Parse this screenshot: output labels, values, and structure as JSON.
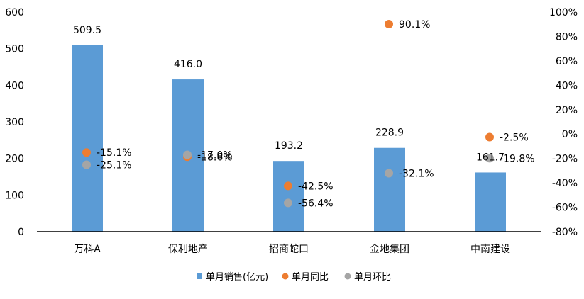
{
  "chart_data": {
    "type": "bar",
    "categories": [
      "万科A",
      "保利地产",
      "招商蛇口",
      "金地集团",
      "中南建设"
    ],
    "series": [
      {
        "name": "单月销售(亿元)",
        "kind": "bar",
        "axis": "left",
        "color": "#5B9BD5",
        "values": [
          509.5,
          416.0,
          193.2,
          228.9,
          161.7
        ],
        "labels": [
          "509.5",
          "416.0",
          "193.2",
          "228.9",
          "161.7"
        ]
      },
      {
        "name": "单月同比",
        "kind": "scatter",
        "axis": "right",
        "color": "#ED7D31",
        "values": [
          -15.1,
          -18.6,
          -42.5,
          90.1,
          -2.5
        ],
        "labels": [
          "-15.1%",
          "-18.6%",
          "-42.5%",
          "90.1%",
          "-2.5%"
        ]
      },
      {
        "name": "单月环比",
        "kind": "scatter",
        "axis": "right",
        "color": "#A5A5A5",
        "values": [
          -25.1,
          -17.0,
          -56.4,
          -32.1,
          -19.8
        ],
        "labels": [
          "-25.1%",
          "-17.0%",
          "-56.4%",
          "-32.1%",
          "-19.8%"
        ]
      }
    ],
    "y_left": {
      "range": [
        0,
        600
      ],
      "ticks": [
        "0",
        "100",
        "200",
        "300",
        "400",
        "500",
        "600"
      ]
    },
    "y_right": {
      "range": [
        -80,
        100
      ],
      "ticks": [
        "-80%",
        "-60%",
        "-40%",
        "-20%",
        "0%",
        "20%",
        "40%",
        "60%",
        "80%",
        "100%"
      ]
    },
    "legend_position": "bottom",
    "grid": false
  }
}
